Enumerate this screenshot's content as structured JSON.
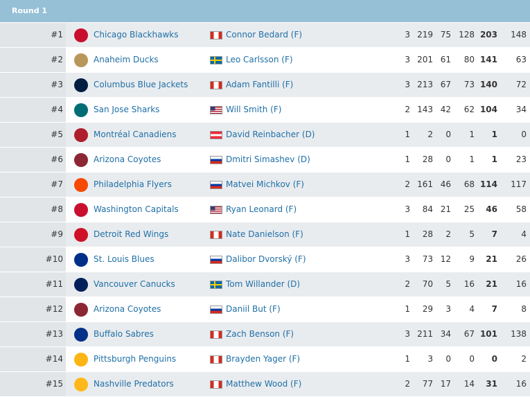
{
  "header": {
    "title": "Round 1"
  },
  "table": {
    "rows": [
      [
        "#1",
        "Chicago Blackhawks",
        "Connor Bedard (F)",
        3,
        219,
        75,
        128,
        203,
        148
      ],
      [
        "#2",
        "Anaheim Ducks",
        "Leo Carlsson (F)",
        3,
        201,
        61,
        80,
        141,
        63
      ],
      [
        "#3",
        "Columbus Blue Jackets",
        "Adam Fantilli (F)",
        3,
        213,
        67,
        73,
        140,
        72
      ],
      [
        "#4",
        "San Jose Sharks",
        "Will Smith (F)",
        2,
        143,
        42,
        62,
        104,
        34
      ],
      [
        "#5",
        "Montréal Canadiens",
        "David Reinbacher (D)",
        1,
        2,
        0,
        1,
        1,
        0
      ],
      [
        "#6",
        "Arizona Coyotes",
        "Dmitri Simashev (D)",
        1,
        28,
        0,
        1,
        1,
        23
      ],
      [
        "#7",
        "Philadelphia Flyers",
        "Matvei Michkov (F)",
        2,
        161,
        46,
        68,
        114,
        117
      ],
      [
        "#8",
        "Washington Capitals",
        "Ryan Leonard (F)",
        3,
        84,
        21,
        25,
        46,
        58
      ],
      [
        "#9",
        "Detroit Red Wings",
        "Nate Danielson (F)",
        1,
        28,
        2,
        5,
        7,
        4
      ],
      [
        "#10",
        "St. Louis Blues",
        "Dalibor Dvorský (F)",
        3,
        73,
        12,
        9,
        21,
        26
      ],
      [
        "#11",
        "Vancouver Canucks",
        "Tom Willander (D)",
        2,
        70,
        5,
        16,
        21,
        16
      ],
      [
        "#12",
        "Arizona Coyotes",
        "Daniil But (F)",
        1,
        29,
        3,
        4,
        7,
        8
      ],
      [
        "#13",
        "Buffalo Sabres",
        "Zach Benson (F)",
        3,
        211,
        34,
        67,
        101,
        138
      ],
      [
        "#14",
        "Pittsburgh Penguins",
        "Brayden Yager (F)",
        1,
        3,
        0,
        0,
        0,
        2
      ],
      [
        "#15",
        "Nashville Predators",
        "Matthew Wood (F)",
        2,
        77,
        17,
        14,
        31,
        16
      ]
    ]
  }
}
